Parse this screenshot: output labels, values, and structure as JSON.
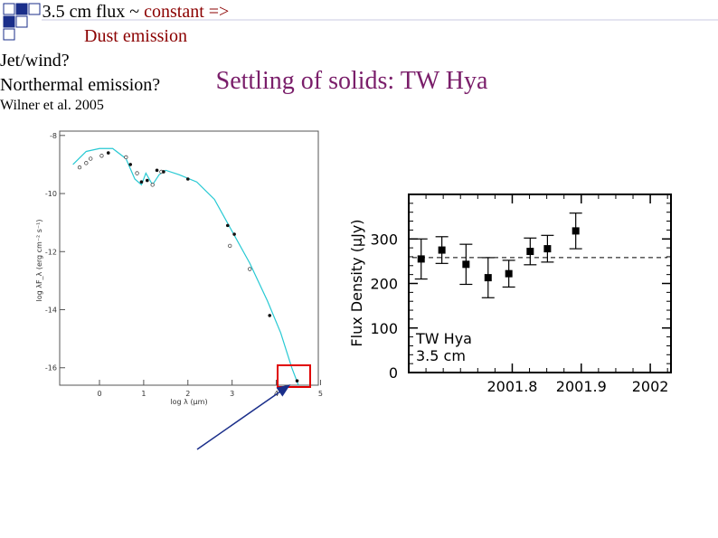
{
  "slide": {
    "title": "Settling of solids: TW Hya",
    "flux_note_prefix": "3.5 cm flux ~ ",
    "flux_note_highlight": "constant =>",
    "flux_note_line2": "Dust emission",
    "jet_note_line1": "Jet/wind?",
    "jet_note_line2": "Northermal emission?",
    "reference": "Wilner et al. 2005",
    "accent_color": "#7a1e6a",
    "corner_color": "#1a2e8a"
  },
  "chart_data": [
    {
      "type": "scatter",
      "title": "",
      "xlabel": "log λ (μm)",
      "ylabel": "log λF_λ (erg cm⁻² s⁻¹)",
      "xlim": [
        -0.9,
        4.95
      ],
      "ylim": [
        -16.6,
        -7.85
      ],
      "xticks": [
        "0",
        "1",
        "2",
        "3",
        "4",
        "5"
      ],
      "yticks": [
        "-8",
        "-10",
        "-12",
        "-14",
        "-16"
      ],
      "filled_points": [
        [
          0.2,
          -8.6
        ],
        [
          0.7,
          -9.0
        ],
        [
          0.95,
          -9.6
        ],
        [
          1.08,
          -9.55
        ],
        [
          1.3,
          -9.2
        ],
        [
          1.45,
          -9.25
        ],
        [
          2.0,
          -9.5
        ],
        [
          2.9,
          -11.1
        ],
        [
          3.05,
          -11.4
        ],
        [
          3.85,
          -14.2
        ],
        [
          4.47,
          -16.45
        ]
      ],
      "open_points": [
        [
          -0.45,
          -9.1
        ],
        [
          -0.3,
          -8.95
        ],
        [
          -0.2,
          -8.8
        ],
        [
          0.05,
          -8.7
        ],
        [
          0.6,
          -8.75
        ],
        [
          0.85,
          -9.3
        ],
        [
          1.2,
          -9.7
        ],
        [
          1.4,
          -9.25
        ],
        [
          2.95,
          -11.8
        ],
        [
          3.4,
          -12.6
        ]
      ],
      "model_curve": [
        [
          -0.6,
          -9.0
        ],
        [
          -0.3,
          -8.55
        ],
        [
          0.0,
          -8.45
        ],
        [
          0.3,
          -8.45
        ],
        [
          0.6,
          -8.8
        ],
        [
          0.8,
          -9.5
        ],
        [
          0.95,
          -9.7
        ],
        [
          1.05,
          -9.3
        ],
        [
          1.2,
          -9.7
        ],
        [
          1.35,
          -9.35
        ],
        [
          1.5,
          -9.2
        ],
        [
          1.8,
          -9.35
        ],
        [
          2.2,
          -9.6
        ],
        [
          2.6,
          -10.2
        ],
        [
          3.0,
          -11.3
        ],
        [
          3.4,
          -12.4
        ],
        [
          3.8,
          -13.7
        ],
        [
          4.1,
          -14.8
        ],
        [
          4.35,
          -16.0
        ],
        [
          4.5,
          -16.6
        ]
      ],
      "highlight_point": "4.47, -16.45",
      "line_color": "#27c9d3"
    },
    {
      "type": "scatter",
      "title": "",
      "xlabel": "",
      "ylabel": "Flux Density (μJy)",
      "xlim": [
        2001.65,
        2002.03
      ],
      "ylim": [
        0,
        400
      ],
      "xticks": [
        "2001.8",
        "2001.9",
        "2002"
      ],
      "yticks": [
        "0",
        "100",
        "200",
        "300"
      ],
      "label_line1": "TW Hya",
      "label_line2": "3.5 cm",
      "mean_line": 258,
      "points": [
        {
          "x": 2001.668,
          "y": 255,
          "err": 45
        },
        {
          "x": 2001.698,
          "y": 275,
          "err": 30
        },
        {
          "x": 2001.733,
          "y": 243,
          "err": 45
        },
        {
          "x": 2001.765,
          "y": 213,
          "err": 45
        },
        {
          "x": 2001.795,
          "y": 222,
          "err": 30
        },
        {
          "x": 2001.826,
          "y": 272,
          "err": 30
        },
        {
          "x": 2001.851,
          "y": 278,
          "err": 30
        },
        {
          "x": 2001.892,
          "y": 318,
          "err": 40
        }
      ]
    }
  ]
}
